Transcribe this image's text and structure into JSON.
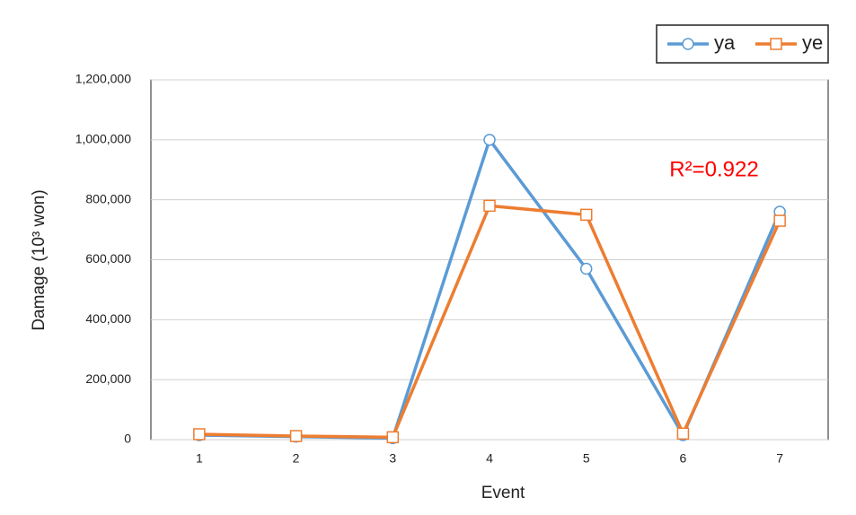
{
  "chart_data": {
    "type": "line",
    "x_label": "Event",
    "y_label": "Damage (10³ won)",
    "annotation": "R²=0.922",
    "annotation_color": "#ff0000",
    "categories": [
      "1",
      "2",
      "3",
      "4",
      "5",
      "6",
      "7"
    ],
    "series": [
      {
        "name": "ya",
        "color": "#5b9bd5",
        "marker": "circle",
        "values": [
          15000,
          10000,
          5000,
          1000000,
          570000,
          15000,
          760000
        ]
      },
      {
        "name": "ye",
        "color": "#ed7d31",
        "marker": "square",
        "values": [
          18000,
          12000,
          8000,
          780000,
          750000,
          20000,
          730000
        ]
      }
    ],
    "ylim": [
      0,
      1200000
    ],
    "yticks": [
      0,
      {
        "value": 200000,
        "label": "200,000"
      },
      {
        "value": 400000,
        "label": "400,000"
      },
      {
        "value": 600000,
        "label": "600,000"
      },
      {
        "value": 800000,
        "label": "800,000"
      },
      {
        "value": 1000000,
        "label": "1,000,000"
      },
      {
        "value": 1200000,
        "label": "1,200,000"
      }
    ],
    "grid": true,
    "legend": "top-right"
  }
}
